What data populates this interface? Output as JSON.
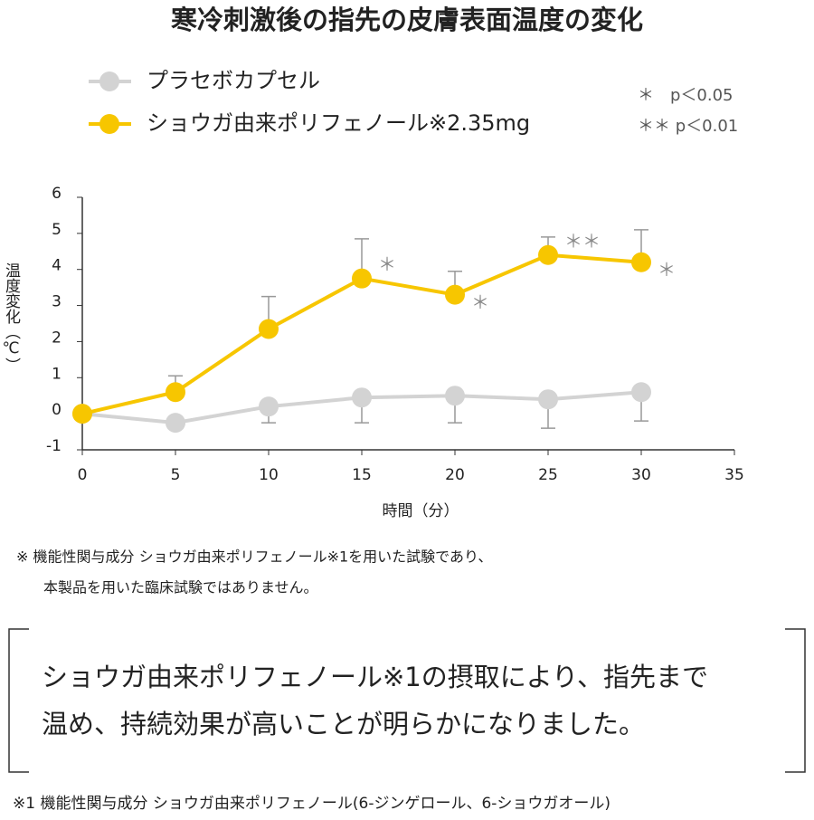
{
  "chart_data": {
    "type": "line",
    "title": "寒冷刺激後の指先の皮膚表面温度の変化",
    "x_label": "時間（分）",
    "y_label": "温度変化（℃）",
    "x": [
      0,
      5,
      10,
      15,
      20,
      25,
      30
    ],
    "xlim": [
      0,
      35
    ],
    "xticks": [
      0,
      5,
      10,
      15,
      20,
      25,
      30,
      35
    ],
    "ylim": [
      -1,
      6
    ],
    "yticks": [
      -1,
      0,
      1,
      2,
      3,
      4,
      5,
      6
    ],
    "series": [
      {
        "name": "プラセボカプセル",
        "color": "#d3d3d3",
        "values": [
          0,
          -0.25,
          0.2,
          0.45,
          0.5,
          0.4,
          0.6
        ],
        "errors": [
          null,
          null,
          0.45,
          0.7,
          0.75,
          0.8,
          0.8
        ],
        "error_side": "lower"
      },
      {
        "name": "ショウガ由来ポリフェノール※2.35mg",
        "color": "#f7c600",
        "values": [
          0,
          0.6,
          2.35,
          3.75,
          3.3,
          4.4,
          4.2
        ],
        "errors": [
          null,
          0.45,
          0.9,
          1.1,
          0.65,
          0.5,
          0.9
        ],
        "error_side": "upper",
        "significance": [
          null,
          null,
          null,
          "＊",
          "＊",
          "＊＊",
          "＊"
        ]
      }
    ],
    "significance_legend": [
      "＊　p＜0.05",
      "＊＊ p＜0.01"
    ]
  },
  "notes": {
    "disclaimer": [
      "※ 機能性関与成分 ショウガ由来ポリフェノール※1を用いた試験であり、",
      "本製品を用いた臨床試験ではありません。"
    ],
    "conclusion": [
      "ショウガ由来ポリフェノール※1の摂取により、指先まで",
      "温め、持続効果が高いことが明らかになりました。"
    ],
    "footnote": "※1 機能性関与成分 ショウガ由来ポリフェノール(6-ジンゲロール、6-ショウガオール)"
  }
}
